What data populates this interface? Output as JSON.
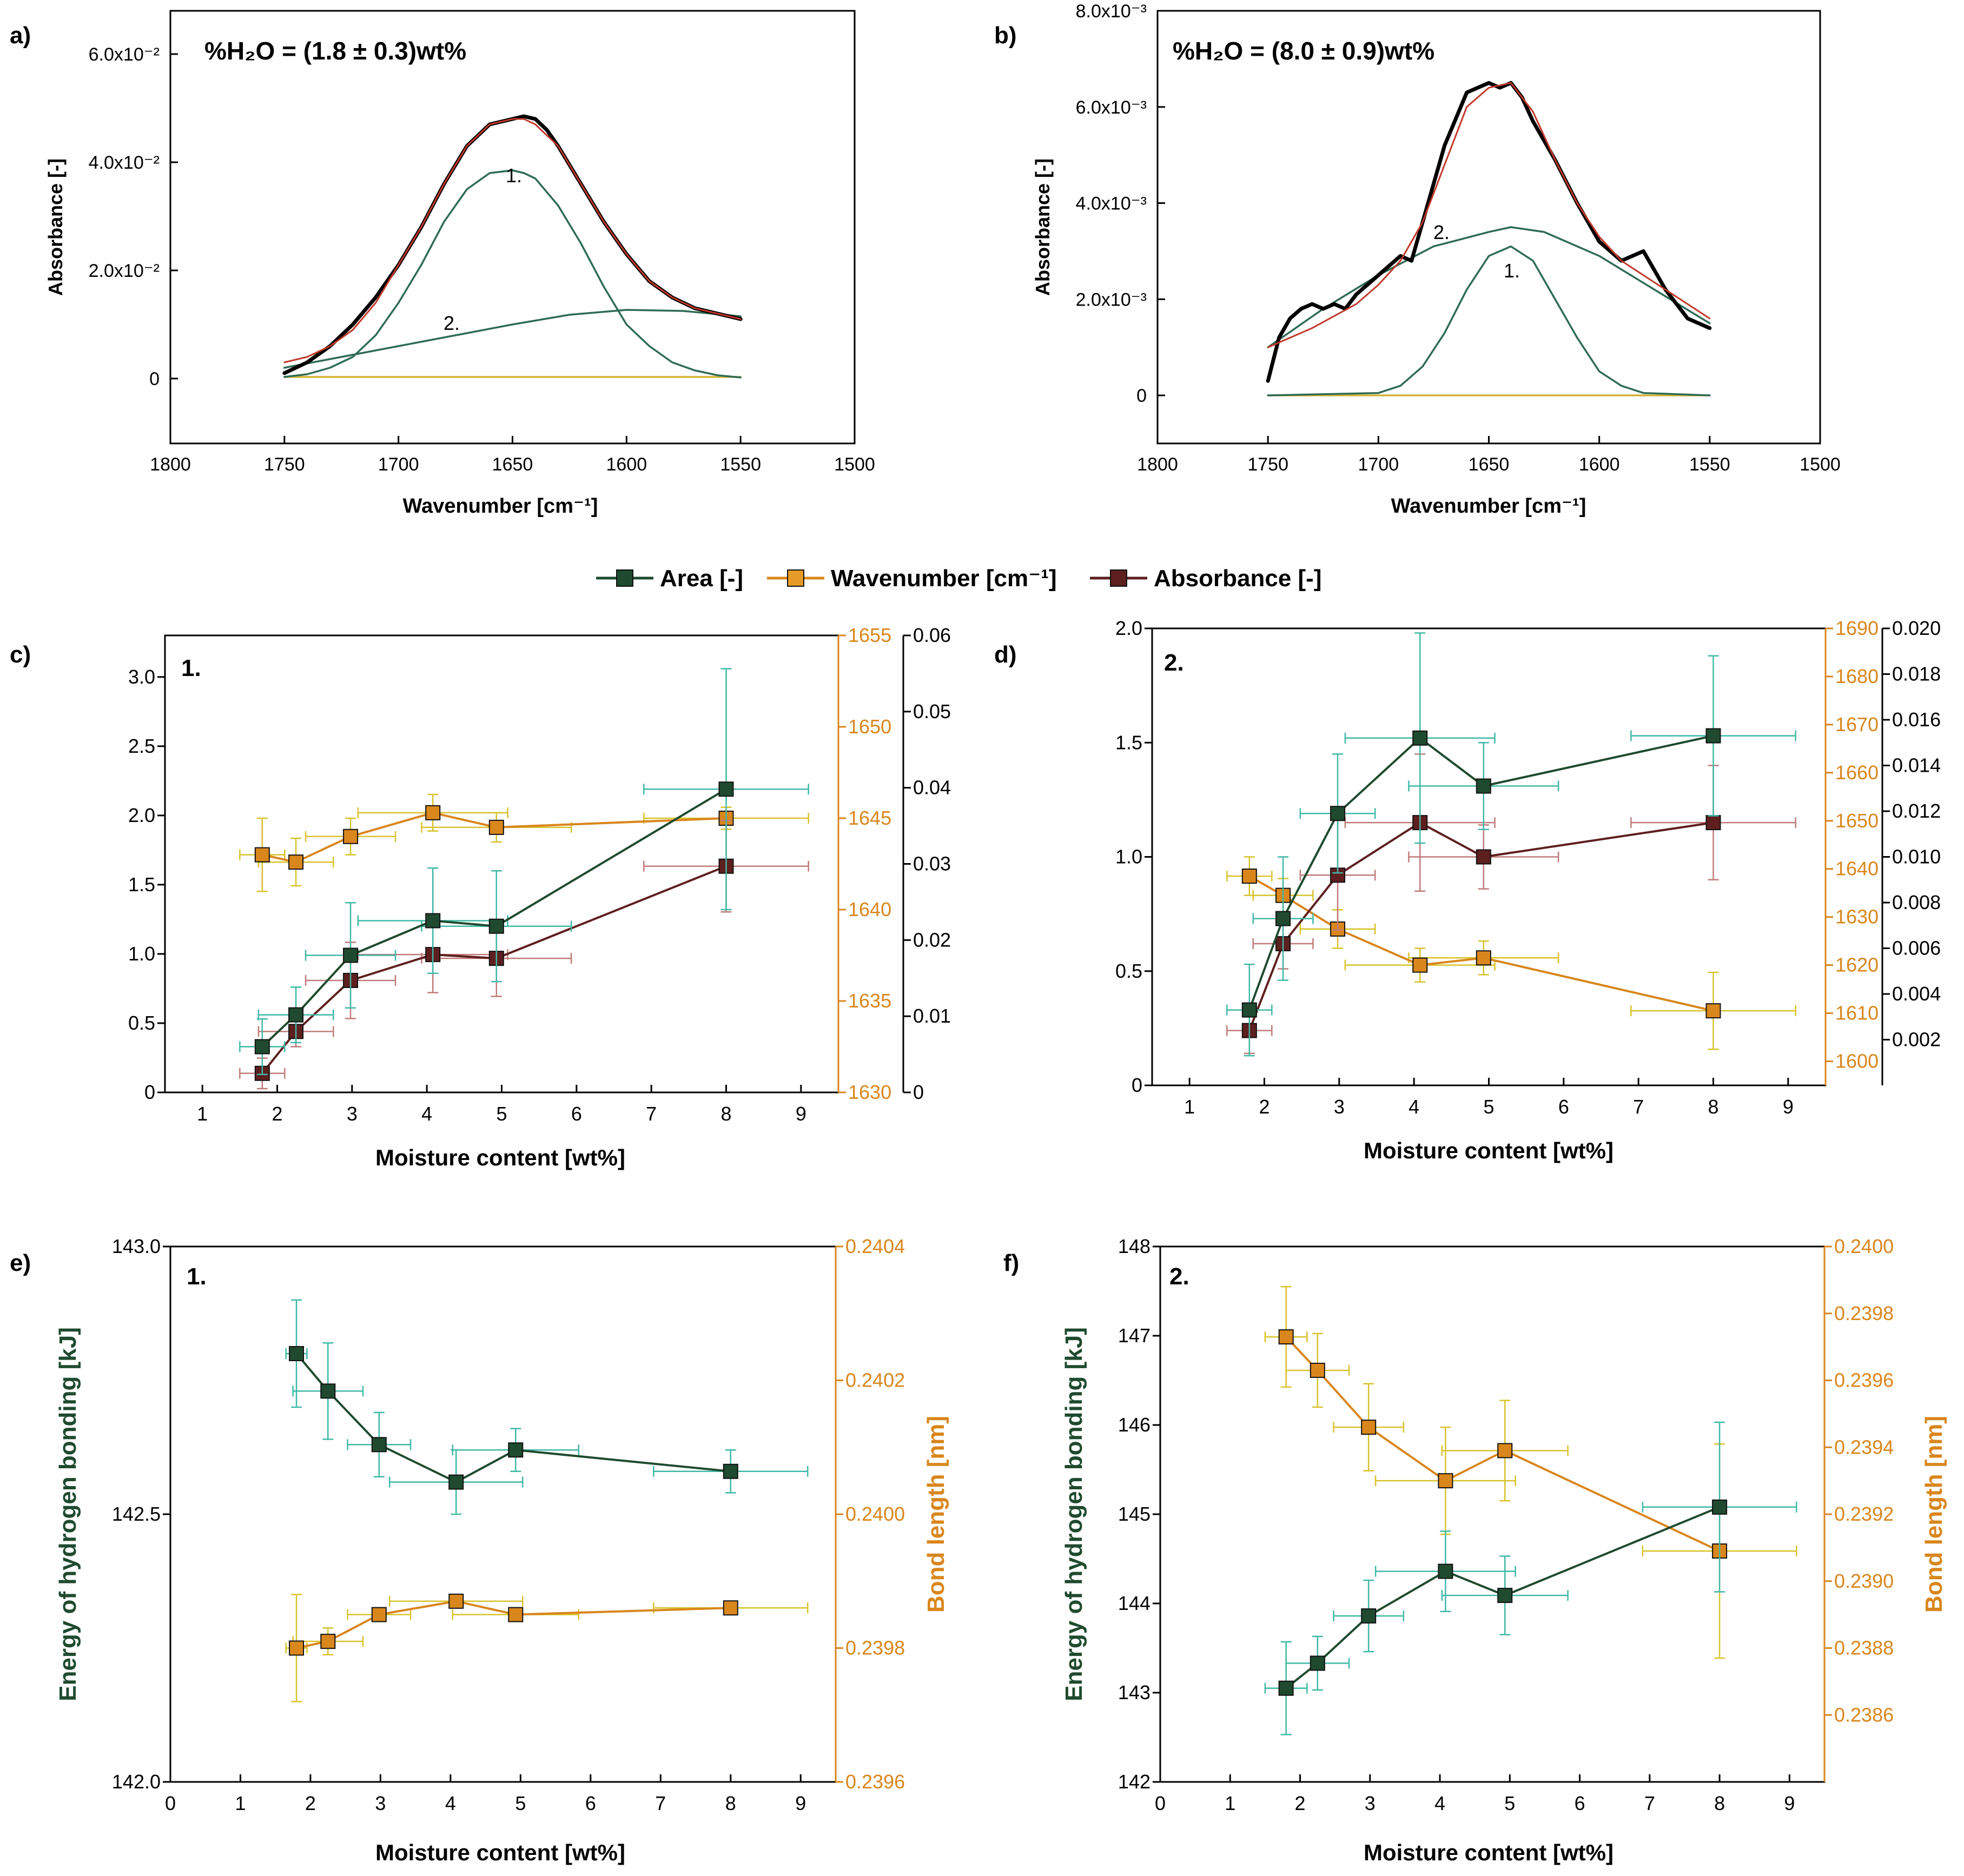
{
  "colors": {
    "green": "#1f4a2f",
    "green_err": "#3fb8a6",
    "orange": "#d9861c",
    "orange_err": "#d8c22a",
    "maroon": "#5e1f1f",
    "maroon_err": "#c07a7a",
    "black": "#000000",
    "red_fit": "#c0392b",
    "teal_fit": "#2f6b55",
    "baseline": "#d4b23a"
  },
  "legend": {
    "area": "Area [-]",
    "wavenumber": "Wavenumber [cm⁻¹]",
    "absorbance": "Absorbance [-]"
  },
  "chart_data": [
    {
      "panel": "a)",
      "type": "line",
      "annotation": "%H₂O = (1.8 ± 0.3)wt%",
      "xlabel": "Wavenumber [cm⁻¹]",
      "ylabel": "Absorbance [-]",
      "xlim": [
        1800,
        1500
      ],
      "ylim": [
        -0.012,
        0.068
      ],
      "xticks": [
        "1800",
        "1750",
        "1700",
        "1650",
        "1600",
        "1550",
        "1500"
      ],
      "yticks": [
        "0",
        "2.0x10⁻²",
        "4.0x10⁻²",
        "6.0x10⁻²"
      ],
      "peak_labels": [
        "1.",
        "2."
      ],
      "series": [
        {
          "name": "measured",
          "x": [
            1750,
            1740,
            1730,
            1720,
            1710,
            1700,
            1690,
            1680,
            1670,
            1660,
            1650,
            1645,
            1640,
            1635,
            1630,
            1620,
            1610,
            1600,
            1590,
            1580,
            1570,
            1560,
            1550
          ],
          "y": [
            0.001,
            0.003,
            0.006,
            0.01,
            0.015,
            0.021,
            0.028,
            0.036,
            0.043,
            0.047,
            0.048,
            0.0485,
            0.048,
            0.046,
            0.043,
            0.036,
            0.029,
            0.023,
            0.018,
            0.015,
            0.013,
            0.012,
            0.011
          ]
        },
        {
          "name": "fit",
          "x": [
            1750,
            1740,
            1730,
            1720,
            1710,
            1700,
            1690,
            1680,
            1670,
            1660,
            1650,
            1645,
            1640,
            1630,
            1620,
            1610,
            1600,
            1590,
            1580,
            1570,
            1560,
            1550
          ],
          "y": [
            0.003,
            0.004,
            0.006,
            0.009,
            0.014,
            0.021,
            0.028,
            0.036,
            0.043,
            0.047,
            0.048,
            0.048,
            0.047,
            0.043,
            0.036,
            0.029,
            0.023,
            0.018,
            0.015,
            0.013,
            0.012,
            0.011
          ]
        },
        {
          "name": "peak 1",
          "x": [
            1750,
            1740,
            1730,
            1720,
            1710,
            1700,
            1690,
            1680,
            1670,
            1660,
            1650,
            1645,
            1640,
            1630,
            1620,
            1610,
            1600,
            1590,
            1580,
            1570,
            1560,
            1550
          ],
          "y": [
            0.0003,
            0.0008,
            0.002,
            0.004,
            0.008,
            0.014,
            0.021,
            0.029,
            0.035,
            0.038,
            0.0385,
            0.038,
            0.037,
            0.032,
            0.025,
            0.017,
            0.01,
            0.006,
            0.003,
            0.0015,
            0.0006,
            0.0002
          ]
        },
        {
          "name": "peak 2",
          "x": [
            1750,
            1725,
            1700,
            1675,
            1650,
            1625,
            1600,
            1575,
            1550
          ],
          "y": [
            0.002,
            0.004,
            0.006,
            0.008,
            0.01,
            0.0118,
            0.0127,
            0.0125,
            0.0115
          ]
        },
        {
          "name": "baseline",
          "x": [
            1750,
            1550
          ],
          "y": [
            0.0003,
            0.0003
          ]
        }
      ]
    },
    {
      "panel": "b)",
      "type": "line",
      "annotation": "%H₂O = (8.0 ± 0.9)wt%",
      "xlabel": "Wavenumber [cm⁻¹]",
      "ylabel": "Absorbance [-]",
      "xlim": [
        1800,
        1500
      ],
      "ylim": [
        -0.001,
        0.008
      ],
      "xticks": [
        "1800",
        "1750",
        "1700",
        "1650",
        "1600",
        "1550",
        "1500"
      ],
      "yticks": [
        "0",
        "2.0x10⁻³",
        "4.0x10⁻³",
        "6.0x10⁻³",
        "8.0x10⁻³"
      ],
      "peak_labels": [
        "1.",
        "2."
      ],
      "series": [
        {
          "name": "measured",
          "x": [
            1750,
            1745,
            1740,
            1735,
            1730,
            1725,
            1720,
            1715,
            1710,
            1700,
            1690,
            1685,
            1680,
            1670,
            1660,
            1650,
            1645,
            1640,
            1635,
            1630,
            1620,
            1610,
            1600,
            1590,
            1580,
            1575,
            1570,
            1560,
            1550
          ],
          "y": [
            0.0003,
            0.0012,
            0.0016,
            0.0018,
            0.0019,
            0.0018,
            0.0019,
            0.0018,
            0.0021,
            0.0025,
            0.0029,
            0.0028,
            0.0036,
            0.0052,
            0.0063,
            0.0065,
            0.0064,
            0.0065,
            0.0062,
            0.0057,
            0.0049,
            0.004,
            0.0032,
            0.0028,
            0.003,
            0.0026,
            0.0022,
            0.0016,
            0.0014
          ]
        },
        {
          "name": "fit",
          "x": [
            1750,
            1730,
            1710,
            1700,
            1690,
            1680,
            1670,
            1660,
            1650,
            1640,
            1630,
            1620,
            1610,
            1600,
            1590,
            1580,
            1570,
            1560,
            1550
          ],
          "y": [
            0.001,
            0.0014,
            0.0019,
            0.0023,
            0.0028,
            0.0036,
            0.0048,
            0.006,
            0.0064,
            0.0065,
            0.0059,
            0.0049,
            0.004,
            0.0033,
            0.0028,
            0.0025,
            0.0022,
            0.0019,
            0.0016
          ]
        },
        {
          "name": "peak 1",
          "x": [
            1750,
            1700,
            1690,
            1680,
            1670,
            1660,
            1650,
            1640,
            1630,
            1620,
            1610,
            1600,
            1590,
            1580,
            1550
          ],
          "y": [
            0.0,
            5e-05,
            0.0002,
            0.0006,
            0.0013,
            0.0022,
            0.0029,
            0.0031,
            0.0028,
            0.002,
            0.0012,
            0.0005,
            0.0002,
            5e-05,
            0.0
          ]
        },
        {
          "name": "peak 2",
          "x": [
            1750,
            1725,
            1700,
            1675,
            1650,
            1640,
            1625,
            1600,
            1575,
            1550
          ],
          "y": [
            0.001,
            0.0018,
            0.0025,
            0.0031,
            0.0034,
            0.0035,
            0.0034,
            0.0029,
            0.0022,
            0.0015
          ]
        },
        {
          "name": "baseline",
          "x": [
            1750,
            1550
          ],
          "y": [
            0.0,
            0.0
          ]
        }
      ]
    },
    {
      "panel": "c)",
      "type": "scatter",
      "peak": "1.",
      "xlabel": "Moisture content [wt%]",
      "xlim": [
        0.5,
        9.5
      ],
      "xticks": [
        1,
        2,
        3,
        4,
        5,
        6,
        7,
        8,
        9
      ],
      "axes": {
        "area": {
          "min": 0,
          "max": 3.3,
          "ticks": [
            "0",
            "0.5",
            "1.0",
            "1.5",
            "2.0",
            "2.5",
            "3.0"
          ]
        },
        "wavenumber": {
          "min": 1630,
          "max": 1655,
          "ticks": [
            "1630",
            "1635",
            "1640",
            "1645",
            "1650",
            "1655"
          ]
        },
        "absorbance": {
          "min": 0,
          "max": 0.06,
          "ticks": [
            "0",
            "0.01",
            "0.02",
            "0.03",
            "0.04",
            "0.05",
            "0.06"
          ]
        }
      },
      "series": [
        {
          "name": "Area [-]",
          "x": [
            1.8,
            2.25,
            2.98,
            4.08,
            4.93,
            8.0
          ],
          "y": [
            0.33,
            0.56,
            0.99,
            1.24,
            1.2,
            2.19
          ],
          "yerr": [
            0.2,
            0.2,
            0.38,
            0.38,
            0.4,
            0.87
          ],
          "xerr": [
            0.3,
            0.5,
            0.6,
            1.0,
            1.0,
            1.1
          ]
        },
        {
          "name": "Wavenumber [cm⁻¹]",
          "x": [
            1.8,
            2.25,
            2.98,
            4.08,
            4.93,
            8.0
          ],
          "y": [
            1643.0,
            1642.6,
            1644.0,
            1645.3,
            1644.5,
            1645.0
          ],
          "yerr": [
            2.0,
            1.3,
            1.0,
            1.0,
            0.8,
            0.6
          ],
          "xerr": [
            0.3,
            0.5,
            0.6,
            1.0,
            1.0,
            1.1
          ]
        },
        {
          "name": "Absorbance [-]",
          "x": [
            1.8,
            2.25,
            2.98,
            4.08,
            4.93,
            8.0
          ],
          "y": [
            0.0025,
            0.008,
            0.0147,
            0.0181,
            0.0176,
            0.0297
          ],
          "yerr": [
            0.002,
            0.002,
            0.005,
            0.005,
            0.005,
            0.006
          ],
          "xerr": [
            0.3,
            0.5,
            0.6,
            1.0,
            1.0,
            1.1
          ]
        }
      ]
    },
    {
      "panel": "d)",
      "type": "scatter",
      "peak": "2.",
      "xlabel": "Moisture content [wt%]",
      "xlim": [
        0.5,
        9.5
      ],
      "xticks": [
        1,
        2,
        3,
        4,
        5,
        6,
        7,
        8,
        9
      ],
      "axes": {
        "area": {
          "min": 0,
          "max": 2.0,
          "ticks": [
            "0",
            "0.5",
            "1.0",
            "1.5",
            "2.0"
          ]
        },
        "wavenumber": {
          "min": 1595,
          "max": 1690,
          "ticks": [
            "1600",
            "1610",
            "1620",
            "1630",
            "1640",
            "1650",
            "1660",
            "1670",
            "1680",
            "1690"
          ]
        },
        "absorbance": {
          "min": 0.0,
          "max": 0.02,
          "ticks": [
            "0.002",
            "0.004",
            "0.006",
            "0.008",
            "0.010",
            "0.012",
            "0.014",
            "0.016",
            "0.018",
            "0.020"
          ]
        }
      },
      "series": [
        {
          "name": "Area [-]",
          "x": [
            1.8,
            2.25,
            2.98,
            4.08,
            4.93,
            8.0
          ],
          "y": [
            0.33,
            0.73,
            1.19,
            1.52,
            1.31,
            1.53
          ],
          "yerr": [
            0.2,
            0.27,
            0.26,
            0.46,
            0.19,
            0.35
          ],
          "xerr": [
            0.3,
            0.4,
            0.5,
            1.0,
            1.0,
            1.1
          ]
        },
        {
          "name": "Wavenumber [cm⁻¹]",
          "x": [
            1.8,
            2.25,
            2.98,
            4.08,
            4.93,
            8.0
          ],
          "y": [
            1638.5,
            1634.5,
            1627.5,
            1620.0,
            1621.5,
            1610.5
          ],
          "yerr": [
            4.0,
            3.5,
            4.0,
            3.5,
            3.5,
            8.0
          ],
          "xerr": [
            0.3,
            0.4,
            0.5,
            1.0,
            1.0,
            1.1
          ]
        },
        {
          "name": "Absorbance [-]",
          "x": [
            1.8,
            2.25,
            2.98,
            4.08,
            4.93,
            8.0
          ],
          "y": [
            0.0024,
            0.0062,
            0.0092,
            0.0115,
            0.01,
            0.0115
          ],
          "yerr": [
            0.001,
            0.0011,
            0.0024,
            0.003,
            0.0014,
            0.0025
          ],
          "xerr": [
            0.3,
            0.4,
            0.5,
            1.0,
            1.0,
            1.1
          ]
        }
      ]
    },
    {
      "panel": "e)",
      "type": "scatter",
      "peak": "1.",
      "xlabel": "Moisture content [wt%]",
      "ylabel": "Energy of hydrogen bonding [kJ]",
      "y2label": "Bond length [nm]",
      "xlim": [
        0,
        9.5
      ],
      "xticks": [
        0,
        1,
        2,
        3,
        4,
        5,
        6,
        7,
        8,
        9
      ],
      "axes": {
        "energy": {
          "min": 142.0,
          "max": 143.0,
          "ticks": [
            "142.0",
            "142.5",
            "143.0"
          ]
        },
        "bond": {
          "min": 0.2396,
          "max": 0.2404,
          "ticks": [
            "0.2396",
            "0.2398",
            "0.2400",
            "0.2402",
            "0.2404"
          ]
        }
      },
      "series": [
        {
          "name": "Energy of hydrogen bonding [kJ]",
          "x": [
            1.8,
            2.25,
            2.98,
            4.08,
            4.93,
            8.0
          ],
          "y": [
            142.8,
            142.73,
            142.63,
            142.56,
            142.62,
            142.58
          ],
          "yerr": [
            0.1,
            0.09,
            0.06,
            0.06,
            0.04,
            0.04
          ],
          "xerr": [
            0.15,
            0.5,
            0.45,
            0.95,
            0.9,
            1.1
          ]
        },
        {
          "name": "Bond length [nm]",
          "x": [
            1.8,
            2.25,
            2.98,
            4.08,
            4.93,
            8.0
          ],
          "y": [
            0.2398,
            0.23981,
            0.23985,
            0.23987,
            0.23985,
            0.23986
          ],
          "yerr": [
            8e-05,
            2e-05,
            1e-05,
            1e-05,
            1e-05,
            1e-05
          ],
          "xerr": [
            0.15,
            0.5,
            0.45,
            0.95,
            0.9,
            1.1
          ]
        }
      ]
    },
    {
      "panel": "f)",
      "type": "scatter",
      "peak": "2.",
      "xlabel": "Moisture content [wt%]",
      "ylabel": "Energy of hydrogen bonding [kJ]",
      "y2label": "Bond length [nm]",
      "xlim": [
        0,
        9.5
      ],
      "xticks": [
        0,
        1,
        2,
        3,
        4,
        5,
        6,
        7,
        8,
        9
      ],
      "axes": {
        "energy": {
          "min": 142,
          "max": 148,
          "ticks": [
            "142",
            "143",
            "144",
            "145",
            "146",
            "147",
            "148"
          ]
        },
        "bond": {
          "min": 0.2384,
          "max": 0.24,
          "ticks": [
            "0.2386",
            "0.2388",
            "0.2390",
            "0.2392",
            "0.2394",
            "0.2396",
            "0.2398",
            "0.2400"
          ]
        }
      },
      "series": [
        {
          "name": "Energy of hydrogen bonding [kJ]",
          "x": [
            1.8,
            2.25,
            2.98,
            4.08,
            4.93,
            8.0
          ],
          "y": [
            143.05,
            143.33,
            143.86,
            144.36,
            144.09,
            145.08
          ],
          "yerr": [
            0.52,
            0.3,
            0.4,
            0.45,
            0.44,
            0.95
          ],
          "xerr": [
            0.3,
            0.45,
            0.5,
            1.0,
            0.9,
            1.1
          ]
        },
        {
          "name": "Bond length [nm]",
          "x": [
            1.8,
            2.25,
            2.98,
            4.08,
            4.93,
            8.0
          ],
          "y": [
            0.23973,
            0.23963,
            0.23946,
            0.2393,
            0.23939,
            0.23909
          ],
          "yerr": [
            0.00015,
            0.00011,
            0.00013,
            0.00016,
            0.00015,
            0.00032
          ],
          "xerr": [
            0.3,
            0.45,
            0.5,
            1.0,
            0.9,
            1.1
          ]
        }
      ]
    }
  ]
}
